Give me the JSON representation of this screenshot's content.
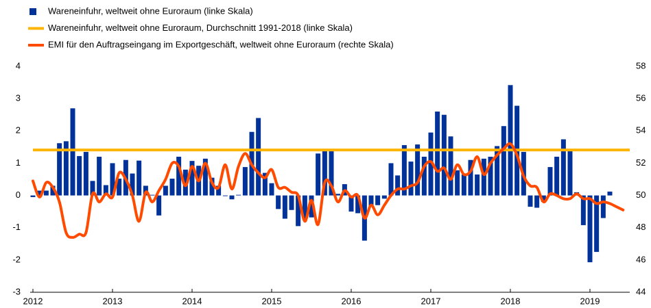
{
  "chart_data": {
    "type": "bar-line",
    "xlim": [
      2012,
      2019.5
    ],
    "xticks": [
      2012,
      2013,
      2014,
      2015,
      2016,
      2017,
      2018,
      2019
    ],
    "ylim": [
      -3,
      4
    ],
    "yticks": [
      -3,
      -2,
      -1,
      0,
      1,
      2,
      3,
      4
    ],
    "y2lim": [
      44,
      58
    ],
    "y2ticks": [
      44,
      46,
      48,
      50,
      52,
      54,
      56,
      58
    ],
    "x": [
      2012.0,
      2012.083,
      2012.167,
      2012.25,
      2012.333,
      2012.417,
      2012.5,
      2012.583,
      2012.667,
      2012.75,
      2012.833,
      2012.917,
      2013.0,
      2013.083,
      2013.167,
      2013.25,
      2013.333,
      2013.417,
      2013.5,
      2013.583,
      2013.667,
      2013.75,
      2013.833,
      2013.917,
      2014.0,
      2014.083,
      2014.167,
      2014.25,
      2014.333,
      2014.417,
      2014.5,
      2014.583,
      2014.667,
      2014.75,
      2014.833,
      2014.917,
      2015.0,
      2015.083,
      2015.167,
      2015.25,
      2015.333,
      2015.417,
      2015.5,
      2015.583,
      2015.667,
      2015.75,
      2015.833,
      2015.917,
      2016.0,
      2016.083,
      2016.167,
      2016.25,
      2016.333,
      2016.417,
      2016.5,
      2016.583,
      2016.667,
      2016.75,
      2016.833,
      2016.917,
      2017.0,
      2017.083,
      2017.167,
      2017.25,
      2017.333,
      2017.417,
      2017.5,
      2017.583,
      2017.667,
      2017.75,
      2017.833,
      2017.917,
      2018.0,
      2018.083,
      2018.167,
      2018.25,
      2018.333,
      2018.417,
      2018.5,
      2018.583,
      2018.667,
      2018.75,
      2018.833,
      2018.917,
      2019.0,
      2019.083,
      2019.167,
      2019.25,
      2019.333,
      2019.417
    ],
    "series": [
      {
        "name": "Wareneinfuhr, weltweit ohne Euroraum (linke Skala)",
        "type": "bar",
        "color": "#003299",
        "values": [
          -0.05,
          0.15,
          0.15,
          0.3,
          1.62,
          1.68,
          2.7,
          1.22,
          1.35,
          0.45,
          1.2,
          0.32,
          1.0,
          0.52,
          1.1,
          0.68,
          1.08,
          0.3,
          0.02,
          -0.62,
          0.3,
          0.52,
          1.2,
          0.8,
          1.07,
          0.92,
          1.14,
          0.55,
          0.3,
          -0.02,
          -0.12,
          0.02,
          0.88,
          1.97,
          2.4,
          0.7,
          0.38,
          -0.42,
          -0.72,
          -0.45,
          -0.95,
          -0.75,
          -0.68,
          1.3,
          1.38,
          1.38,
          0.05,
          0.35,
          -0.5,
          -0.55,
          -1.4,
          -0.32,
          -0.3,
          -0.1,
          1.0,
          0.62,
          1.56,
          1.05,
          1.58,
          1.2,
          1.95,
          2.6,
          2.5,
          1.83,
          0.78,
          0.65,
          1.1,
          0.65,
          1.14,
          1.2,
          1.53,
          2.15,
          3.42,
          2.78,
          1.35,
          -0.35,
          -0.38,
          -0.2,
          0.88,
          1.2,
          1.74,
          1.38,
          0.1,
          -0.92,
          -2.07,
          -1.75,
          -0.7,
          0.12,
          null,
          null
        ]
      },
      {
        "name": "Wareneinfuhr, weltweit ohne Euroraum, Durchschnitt 1991-2018 (linke Skala)",
        "type": "hline",
        "color": "#ffb400",
        "value": 1.41
      },
      {
        "name": "EMI für den Auftragseingang im Exportgeschäft, weltweit ohne Euroraum (rechte Skala)",
        "type": "line",
        "color": "#ff4b00",
        "axis": "y2",
        "values": [
          50.9,
          49.9,
          50.8,
          50.5,
          49.6,
          47.7,
          47.4,
          47.6,
          47.7,
          50.1,
          49.6,
          50.1,
          49.9,
          51.4,
          51.0,
          50.0,
          48.4,
          50.2,
          49.6,
          50.3,
          51.0,
          52.0,
          51.8,
          50.6,
          51.8,
          50.9,
          52.0,
          50.8,
          50.5,
          51.9,
          50.4,
          51.8,
          52.6,
          51.9,
          51.4,
          51.1,
          51.6,
          50.5,
          50.5,
          50.2,
          50.0,
          48.4,
          49.7,
          48.2,
          50.8,
          50.6,
          49.6,
          50.3,
          49.9,
          50.0,
          48.6,
          49.4,
          48.8,
          49.4,
          50.0,
          50.4,
          50.4,
          50.6,
          50.8,
          51.8,
          52.1,
          51.5,
          51.7,
          51.0,
          51.9,
          51.3,
          51.5,
          52.4,
          51.3,
          52.0,
          52.5,
          52.9,
          53.2,
          52.5,
          51.2,
          50.6,
          50.5,
          49.6,
          50.1,
          50.0,
          49.8,
          49.8,
          50.1,
          49.8,
          49.8,
          49.5,
          49.6,
          49.5,
          49.3,
          49.1
        ]
      }
    ]
  }
}
